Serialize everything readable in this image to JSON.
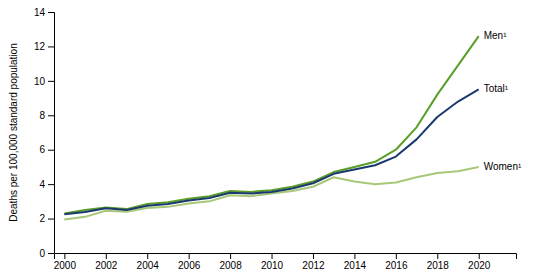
{
  "chart_data": {
    "type": "line",
    "y_label": "Deaths per 100,000 standard population",
    "x": [
      2000,
      2001,
      2002,
      2003,
      2004,
      2005,
      2006,
      2007,
      2008,
      2009,
      2010,
      2011,
      2012,
      2013,
      2014,
      2015,
      2016,
      2017,
      2018,
      2019,
      2020
    ],
    "series": [
      {
        "name": "Women¹",
        "color": "#a8c878",
        "values": [
          1.95,
          2.1,
          2.45,
          2.4,
          2.62,
          2.68,
          2.88,
          3.0,
          3.35,
          3.3,
          3.45,
          3.6,
          3.85,
          4.4,
          4.15,
          4.0,
          4.1,
          4.4,
          4.65,
          4.75,
          5.0
        ]
      },
      {
        "name": "Men¹",
        "color": "#5a9e28",
        "values": [
          2.3,
          2.5,
          2.65,
          2.55,
          2.85,
          2.95,
          3.15,
          3.3,
          3.6,
          3.55,
          3.65,
          3.85,
          4.15,
          4.7,
          5.0,
          5.3,
          6.0,
          7.3,
          9.2,
          10.9,
          12.6
        ]
      },
      {
        "name": "Total¹",
        "color": "#1a3a6e",
        "values": [
          2.25,
          2.38,
          2.6,
          2.5,
          2.75,
          2.85,
          3.05,
          3.2,
          3.5,
          3.45,
          3.55,
          3.75,
          4.05,
          4.6,
          4.85,
          5.1,
          5.6,
          6.6,
          7.9,
          8.8,
          9.5
        ]
      }
    ],
    "xlim": [
      1999.5,
      2021.8
    ],
    "xticks": [
      2000,
      2002,
      2004,
      2006,
      2008,
      2010,
      2012,
      2014,
      2016,
      2018,
      2020
    ],
    "ylim": [
      0,
      14
    ],
    "yticks": [
      0,
      2,
      4,
      6,
      8,
      10,
      12,
      14
    ],
    "grid": false
  }
}
